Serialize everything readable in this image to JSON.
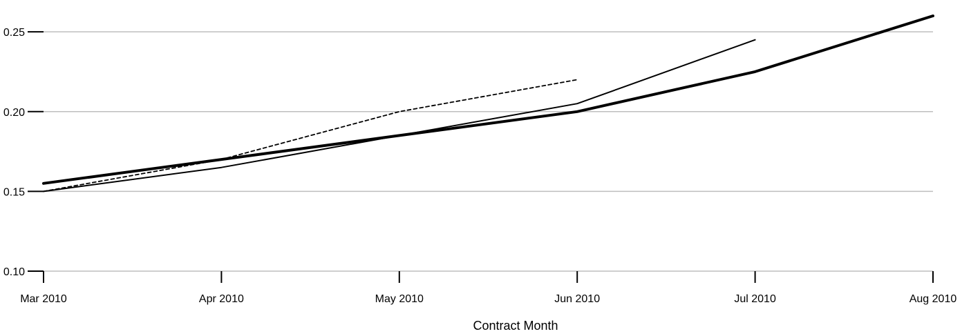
{
  "chart_data": {
    "type": "line",
    "title": "",
    "xlabel": "Contract Month",
    "ylabel": "",
    "categories": [
      "Mar 2010",
      "Apr 2010",
      "May 2010",
      "Jun 2010",
      "Jul 2010",
      "Aug 2010"
    ],
    "ylim": [
      0.1,
      0.26
    ],
    "yticks": [
      "0.10",
      "0.15",
      "0.20",
      "0.25"
    ],
    "grid": true,
    "legend": "none",
    "series": [
      {
        "style": "dashed",
        "color": "#000000",
        "values": [
          0.15,
          0.17,
          0.2,
          0.22,
          null,
          null
        ]
      },
      {
        "style": "thin",
        "color": "#000000",
        "values": [
          0.15,
          0.165,
          0.185,
          0.205,
          0.245,
          null
        ]
      },
      {
        "style": "thick",
        "color": "#000000",
        "values": [
          0.155,
          0.17,
          0.185,
          0.2,
          0.225,
          0.26
        ]
      }
    ],
    "gridline_color": "#bebebe",
    "axis_color": "#000000"
  }
}
